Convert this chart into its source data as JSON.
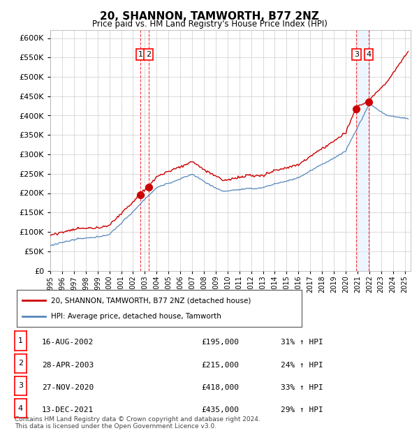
{
  "title": "20, SHANNON, TAMWORTH, B77 2NZ",
  "subtitle": "Price paid vs. HM Land Registry's House Price Index (HPI)",
  "ylim": [
    0,
    620000
  ],
  "yticks": [
    0,
    50000,
    100000,
    150000,
    200000,
    250000,
    300000,
    350000,
    400000,
    450000,
    500000,
    550000,
    600000
  ],
  "xlim_start": 1995.0,
  "xlim_end": 2025.5,
  "sale_color": "#cc0000",
  "hpi_color": "#5588bb",
  "shade_color": "#ddeeff",
  "sale_label": "20, SHANNON, TAMWORTH, B77 2NZ (detached house)",
  "hpi_label": "HPI: Average price, detached house, Tamworth",
  "transactions": [
    {
      "num": 1,
      "date": "16-AUG-2002",
      "price": 195000,
      "pct": "31%",
      "x": 2002.62
    },
    {
      "num": 2,
      "date": "28-APR-2003",
      "price": 215000,
      "pct": "24%",
      "x": 2003.32
    },
    {
      "num": 3,
      "date": "27-NOV-2020",
      "price": 418000,
      "pct": "33%",
      "x": 2020.91
    },
    {
      "num": 4,
      "date": "13-DEC-2021",
      "price": 435000,
      "pct": "29%",
      "x": 2021.95
    }
  ],
  "footer": "Contains HM Land Registry data © Crown copyright and database right 2024.\nThis data is licensed under the Open Government Licence v3.0.",
  "background_color": "#ffffff",
  "grid_color": "#cccccc"
}
